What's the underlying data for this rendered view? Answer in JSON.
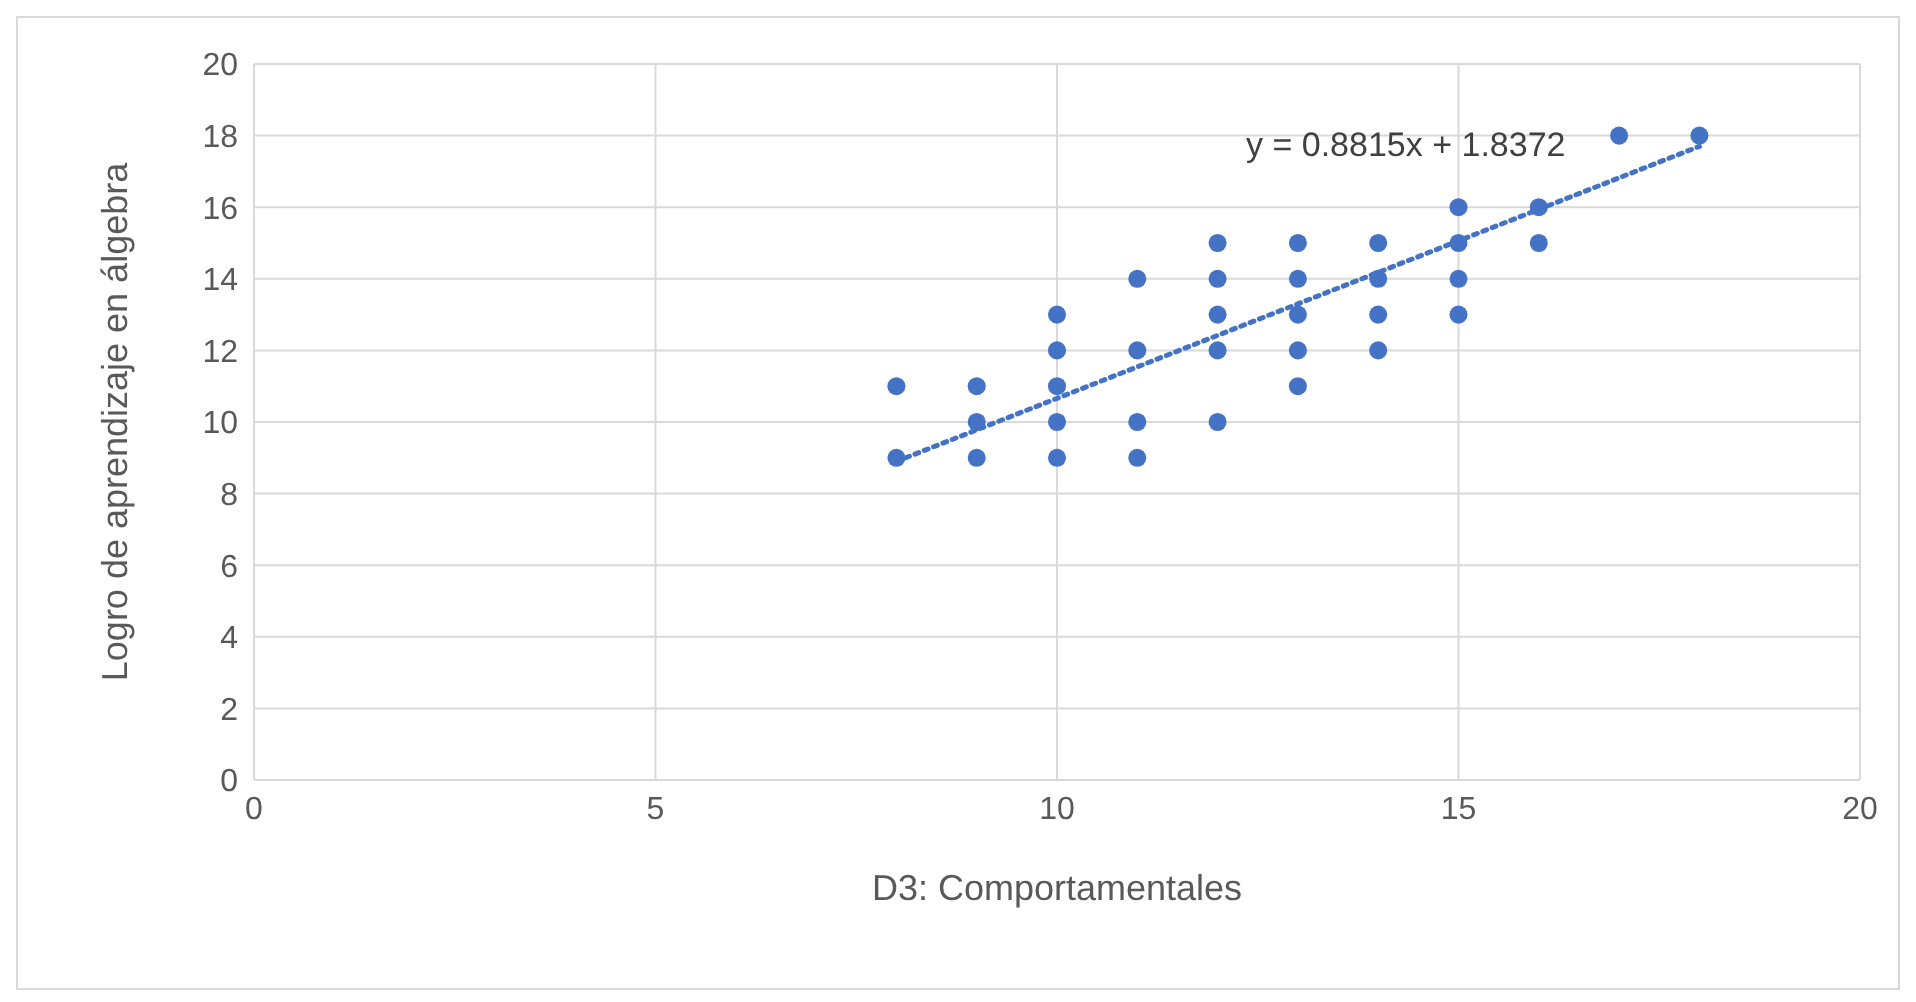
{
  "chart_data": {
    "type": "scatter",
    "xlabel": "D3: Comportamentales",
    "ylabel": "Logro de aprendizaje en álgebra",
    "xlim": [
      0,
      20
    ],
    "xticks": [
      0,
      5,
      10,
      15,
      20
    ],
    "ylim": [
      0,
      20
    ],
    "yticks": [
      0,
      2,
      4,
      6,
      8,
      10,
      12,
      14,
      16,
      18,
      20
    ],
    "grid": true,
    "marker": "circle",
    "annotations": [
      "y = 0.8815x + 1.8372"
    ],
    "series": [
      {
        "color": "#4472c4",
        "x": [
          8,
          8,
          9,
          9,
          9,
          10,
          10,
          10,
          10,
          10,
          11,
          11,
          11,
          11,
          12,
          12,
          12,
          12,
          12,
          13,
          13,
          13,
          13,
          13,
          14,
          14,
          14,
          14,
          15,
          15,
          15,
          15,
          16,
          16,
          17,
          18
        ],
        "values": [
          11,
          9,
          11,
          10,
          9,
          13,
          12,
          11,
          10,
          9,
          14,
          12,
          10,
          9,
          15,
          14,
          13,
          12,
          10,
          15,
          14,
          13,
          12,
          11,
          15,
          14,
          13,
          12,
          16,
          15,
          14,
          13,
          16,
          15,
          18,
          18
        ]
      },
      {
        "type": "line",
        "color": "#4472c4",
        "line_style": "dotted",
        "marker": "none",
        "x": [
          8,
          18
        ],
        "values": [
          8.9,
          17.7
        ]
      }
    ]
  }
}
